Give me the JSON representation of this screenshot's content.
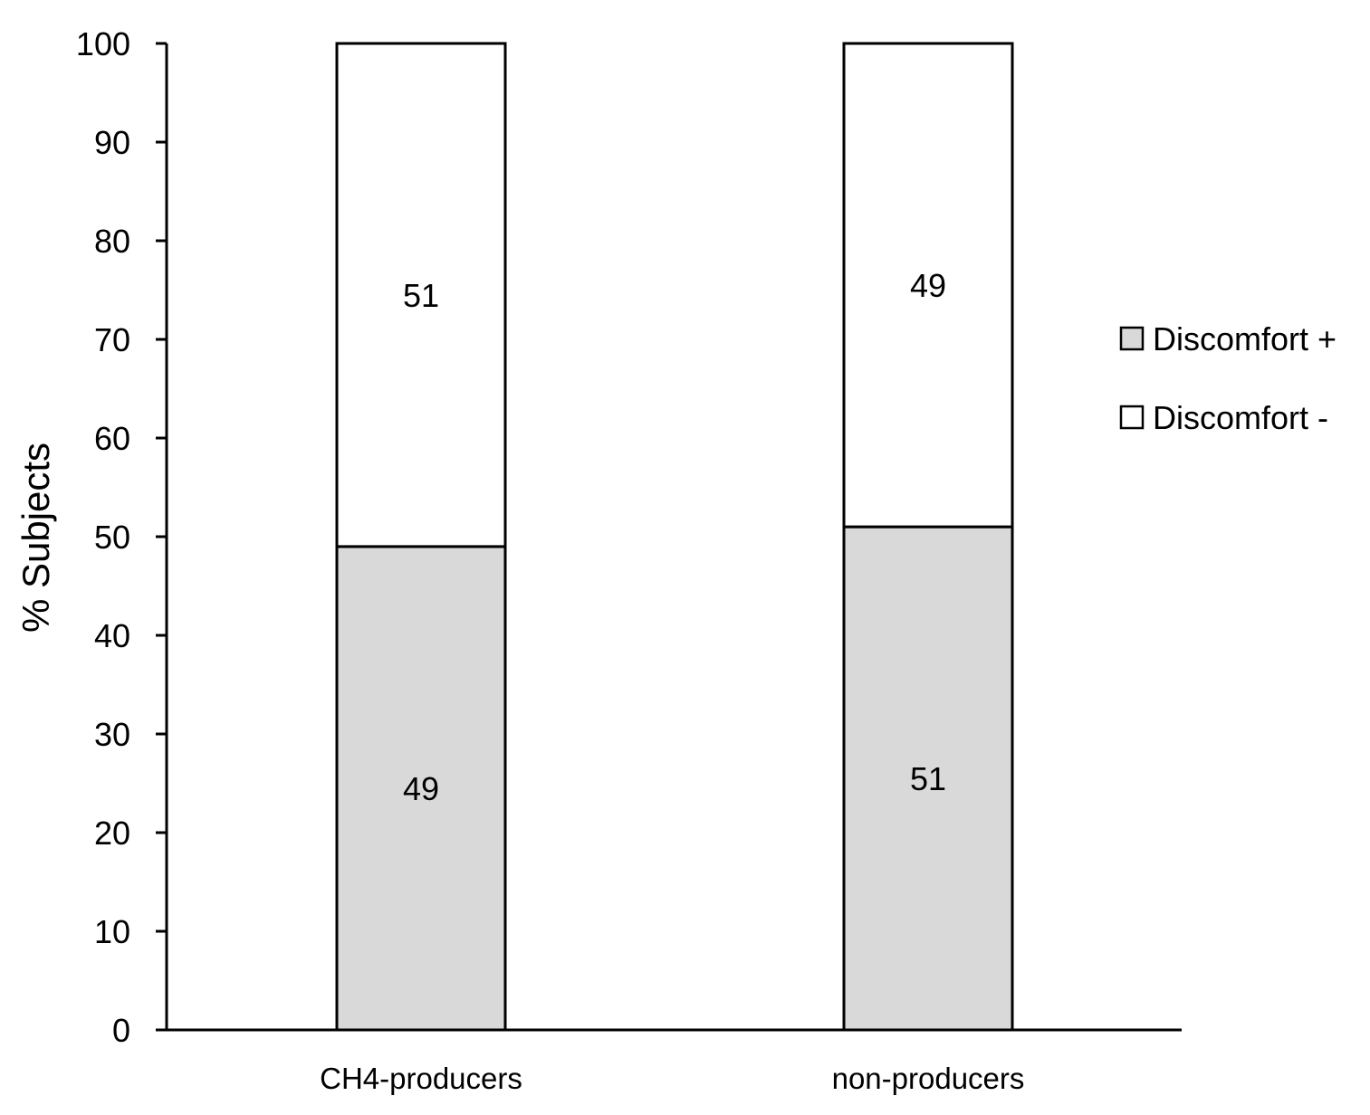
{
  "chart_data": {
    "type": "bar",
    "stacked": true,
    "categories": [
      "CH4-producers",
      "non-producers"
    ],
    "series": [
      {
        "name": "Discomfort +",
        "values": [
          49,
          51
        ],
        "color": "#d9d9d9",
        "labels": [
          "49",
          "51"
        ]
      },
      {
        "name": "Discomfort -",
        "values": [
          51,
          49
        ],
        "color": "#ffffff",
        "labels": [
          "51",
          "49"
        ]
      }
    ],
    "title": "",
    "xlabel": "",
    "ylabel": "% Subjects",
    "ylim": [
      0,
      100
    ],
    "yticks": [
      0,
      10,
      20,
      30,
      40,
      50,
      60,
      70,
      80,
      90,
      100
    ],
    "grid": false,
    "legend_position": "right"
  }
}
